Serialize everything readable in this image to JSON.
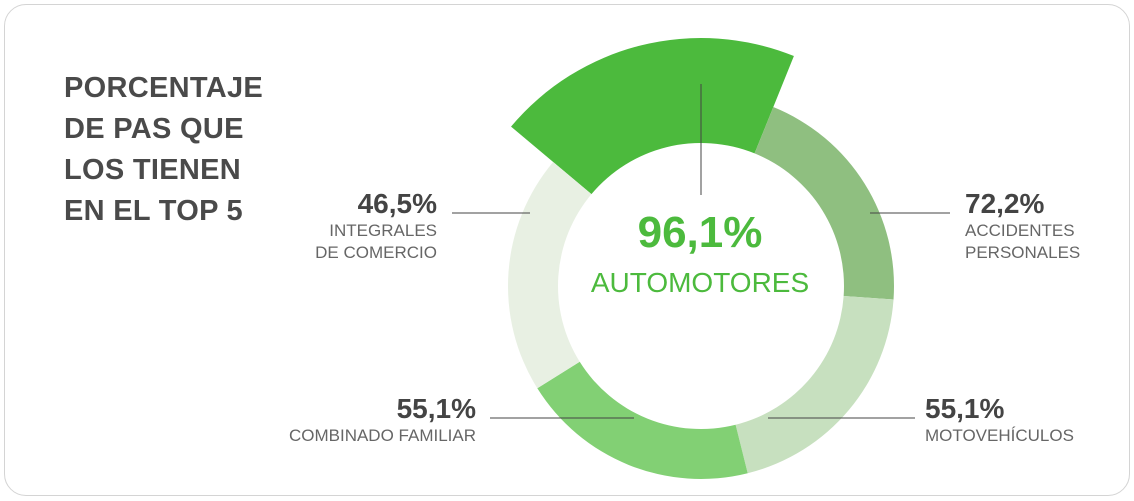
{
  "title_lines": [
    "PORCENTAJE",
    "DE PAS QUE",
    "LOS TIENEN",
    "EN EL TOP 5"
  ],
  "chart_data": {
    "type": "pie",
    "title": "PORCENTAJE DE PAS QUE LOS TIENEN EN EL TOP 5",
    "categories": [
      "AUTOMOTORES",
      "ACCIDENTES PERSONALES",
      "MOTOVEHÍCULOS",
      "COMBINADO FAMILIAR",
      "INTEGRALES DE COMERCIO"
    ],
    "values": [
      96.1,
      72.2,
      55.1,
      55.1,
      46.5
    ],
    "value_labels": [
      "96,1%",
      "72,2%",
      "55,1%",
      "55,1%",
      "46,5%"
    ],
    "label_lines": [
      [
        "AUTOMOTORES"
      ],
      [
        "ACCIDENTES",
        "PERSONALES"
      ],
      [
        "MOTOVEHÍCULOS"
      ],
      [
        "COMBINADO FAMILIAR"
      ],
      [
        "INTEGRALES",
        "DE COMERCIO"
      ]
    ],
    "colors": [
      "#4cba3d",
      "#8fbf80",
      "#c7e0bf",
      "#82d074",
      "#e8f0e3"
    ],
    "highlight": "AUTOMOTORES"
  }
}
